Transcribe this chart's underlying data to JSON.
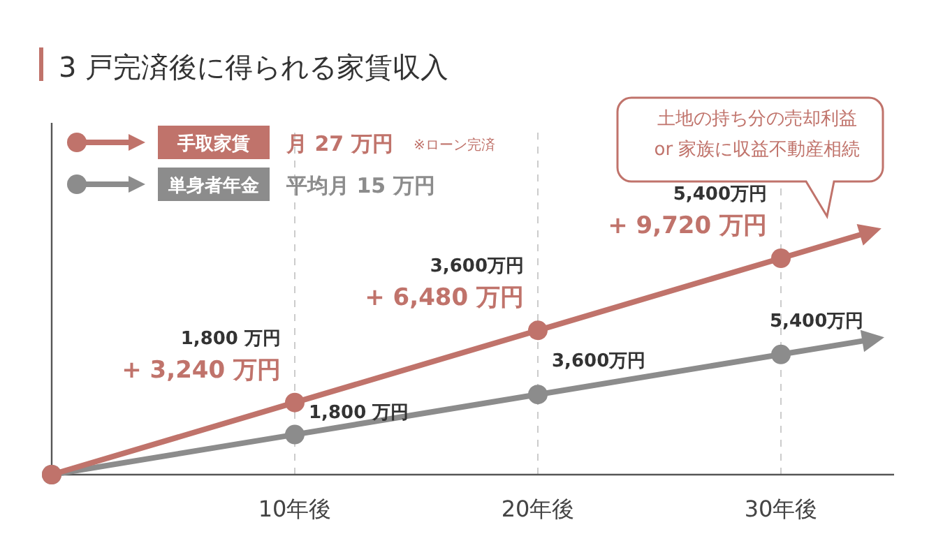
{
  "chart_data": {
    "type": "line",
    "title": "3 戸完済後に得られる家賃収入",
    "categories": [
      null,
      "10年後",
      "20年後",
      "30年後"
    ],
    "series": [
      {
        "name": "手取家賃",
        "color": "#c0736b",
        "values": [
          0,
          3240,
          6480,
          9720
        ],
        "value_labels": [
          null,
          "+ 3,240 万円",
          "+ 6,480 万円",
          "+ 9,720 万円"
        ]
      },
      {
        "name": "単身者年金",
        "color": "#8c8c8c",
        "values": [
          0,
          1800,
          3600,
          5400
        ],
        "value_labels": [
          null,
          "1,800 万円",
          "3,600万円",
          "5,400万円"
        ]
      }
    ],
    "annotations": [
      "月 27 万円",
      "※ローン完済",
      "平均月 15 万円",
      "土地の持ち分の売却利益 or 家族に収益不動産相続",
      "1,800 万円",
      "3,600万円",
      "5,400万円"
    ],
    "grid": "x",
    "legend": "top left",
    "marker": "circle",
    "line_style": "solid"
  }
}
